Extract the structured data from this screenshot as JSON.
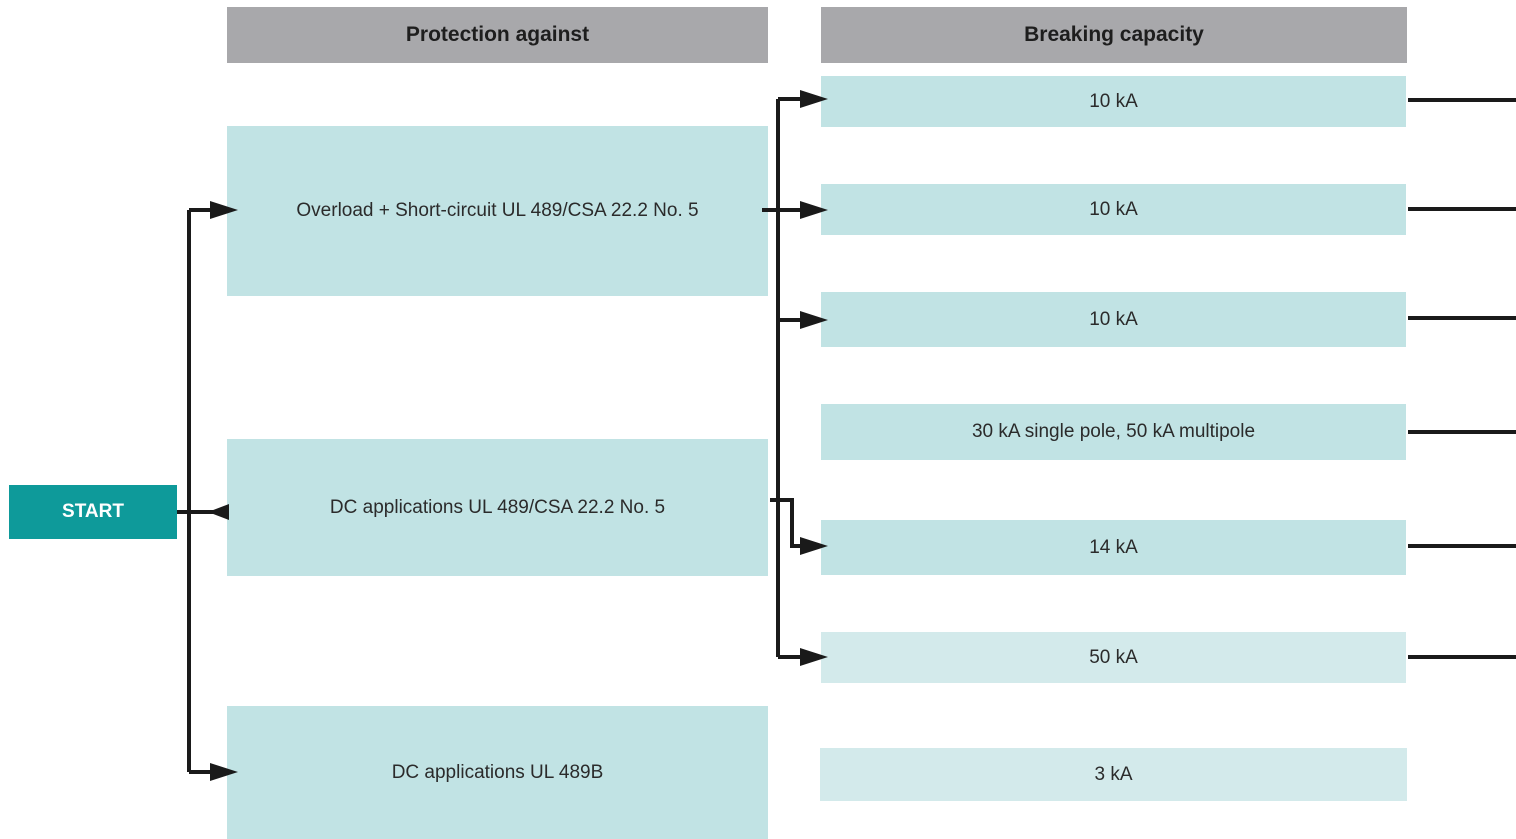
{
  "headers": {
    "protection": "Protection against",
    "breaking": "Breaking capacity"
  },
  "start": {
    "label": "START",
    "color": "#0e9a9a"
  },
  "protection": [
    {
      "label": "Overload + Short-circuit UL 489/CSA 22.2 No. 5"
    },
    {
      "label": "DC applications UL 489/CSA 22.2 No. 5"
    },
    {
      "label": "DC applications UL 489B"
    }
  ],
  "breaking": [
    {
      "label": "10 kA"
    },
    {
      "label": "10 kA"
    },
    {
      "label": "10 kA"
    },
    {
      "label": "30 kA single pole, 50 kA multipole"
    },
    {
      "label": "14 kA"
    },
    {
      "label": "50 kA"
    },
    {
      "label": "3 kA"
    }
  ],
  "colors": {
    "header": "#a8a8ab",
    "box": "#c1e3e4",
    "box_light": "#d3eaeb",
    "connector": "#1a1a1a"
  }
}
